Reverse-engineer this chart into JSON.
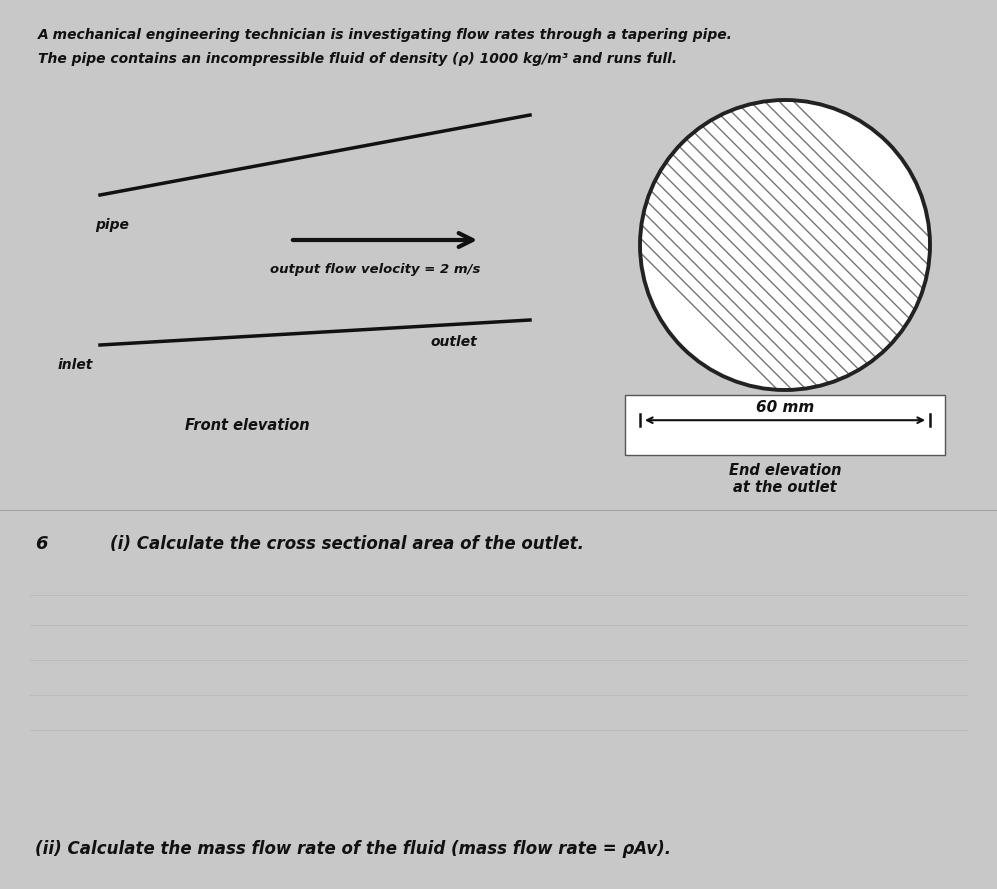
{
  "bg_color": "#c8c8c8",
  "title_line1": "A mechanical engineering technician is investigating flow rates through a tapering pipe.",
  "title_line2": "The pipe contains an incompressible fluid of density (ρ) 1000 kg/m³ and runs full.",
  "pipe_label": "pipe",
  "inlet_label": "inlet",
  "outlet_label": "outlet",
  "arrow_label": "output flow velocity = 2 m/s",
  "front_elevation_label": "Front elevation",
  "end_elevation_label": "End elevation\nat the outlet",
  "dimension_label": "60 mm",
  "question_num": "6",
  "question_i": "(i) Calculate the cross sectional area of the outlet.",
  "question_ii": "(ii) Calculate the mass flow rate of the fluid (mass flow rate = ρAv)."
}
